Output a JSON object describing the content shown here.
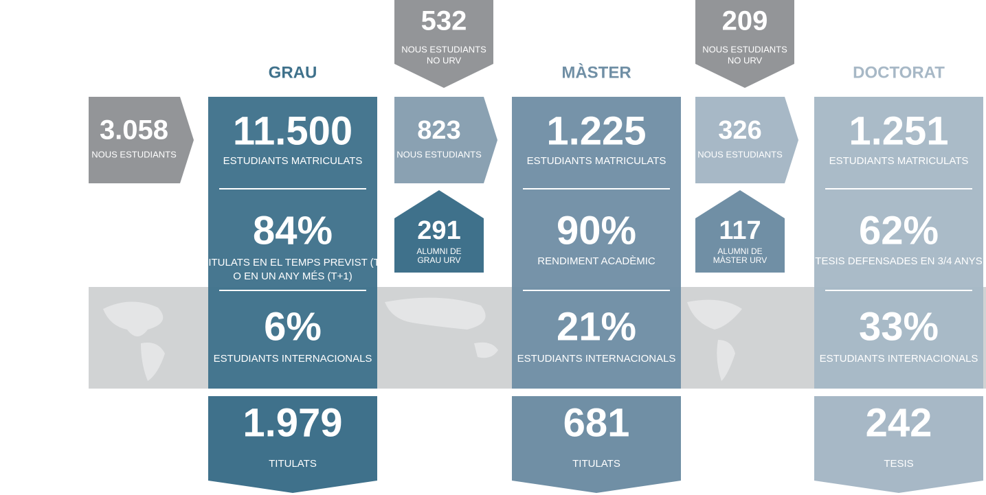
{
  "entry": {
    "value": "3.058",
    "label": "NOUS ESTUDIANTS"
  },
  "levels": [
    {
      "title": "GRAU",
      "stats": [
        {
          "value": "11.500",
          "label": [
            "ESTUDIANTS MATRICULATS"
          ]
        },
        {
          "value": "84%",
          "label": [
            "TITULATS EN EL TEMPS PREVIST (T)",
            "O EN UN ANY MÉS (T+1)"
          ]
        },
        {
          "value": "6%",
          "label": [
            "ESTUDIANTS INTERNACIONALS"
          ]
        }
      ],
      "output": {
        "value": "1.979",
        "label": "TITULATS"
      }
    },
    {
      "title": "MÀSTER",
      "stats": [
        {
          "value": "1.225",
          "label": [
            "ESTUDIANTS MATRICULATS"
          ]
        },
        {
          "value": "90%",
          "label": [
            "RENDIMENT ACADÈMIC"
          ]
        },
        {
          "value": "21%",
          "label": [
            "ESTUDIANTS INTERNACIONALS"
          ]
        }
      ],
      "output": {
        "value": "681",
        "label": "TITULATS"
      }
    },
    {
      "title": "DOCTORAT",
      "stats": [
        {
          "value": "1.251",
          "label": [
            "ESTUDIANTS MATRICULATS"
          ]
        },
        {
          "value": "62%",
          "label": [
            "TESIS DEFENSADES EN 3/4 ANYS"
          ]
        },
        {
          "value": "33%",
          "label": [
            "ESTUDIANTS INTERNACIONALS"
          ]
        }
      ],
      "output": {
        "value": "242",
        "label": "TESIS"
      }
    }
  ],
  "transitions": [
    {
      "external": {
        "value": "532",
        "label": [
          "NOUS ESTUDIANTS",
          "NO URV"
        ]
      },
      "new": {
        "value": "823",
        "label": "NOUS ESTUDIANTS"
      },
      "alumni": {
        "value": "291",
        "label": [
          "ALUMNI DE",
          "GRAU URV"
        ]
      }
    },
    {
      "external": {
        "value": "209",
        "label": [
          "NOUS ESTUDIANTS",
          "NO URV"
        ]
      },
      "new": {
        "value": "326",
        "label": "NOUS ESTUDIANTS"
      },
      "alumni": {
        "value": "117",
        "label": [
          "ALUMNI DE",
          "MÀSTER URV"
        ]
      }
    }
  ]
}
